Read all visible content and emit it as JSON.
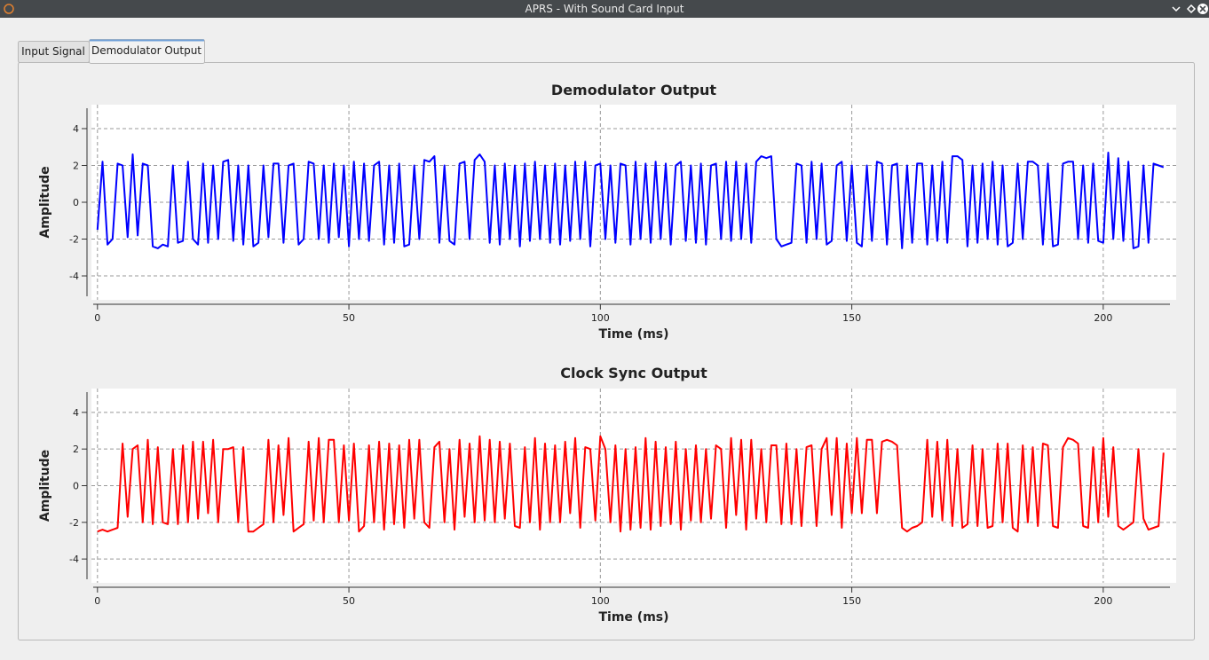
{
  "window": {
    "title": "APRS - With Sound Card Input"
  },
  "tabs": [
    "Input Signal",
    "Demodulator Output"
  ],
  "chart_data": [
    {
      "type": "line",
      "title": "Demodulator Output",
      "xlabel": "Time (ms)",
      "ylabel": "Amplitude",
      "grid": true,
      "xlim": [
        -1.2,
        214.5
      ],
      "xticks": [
        0,
        50,
        100,
        150,
        200
      ],
      "ylim": [
        -5.3,
        5.3
      ],
      "yticks": [
        -4,
        -2,
        0,
        2,
        4
      ],
      "x": [
        0,
        1,
        2,
        3,
        4,
        5,
        6,
        7,
        8,
        9,
        10,
        11,
        12,
        13,
        14,
        15,
        16,
        17,
        18,
        19,
        20,
        21,
        22,
        23,
        24,
        25,
        26,
        27,
        28,
        29,
        30,
        31,
        32,
        33,
        34,
        35,
        36,
        37,
        38,
        39,
        40,
        41,
        42,
        43,
        44,
        45,
        46,
        47,
        48,
        49,
        50,
        51,
        52,
        53,
        54,
        55,
        56,
        57,
        58,
        59,
        60,
        61,
        62,
        63,
        64,
        65,
        66,
        67,
        68,
        69,
        70,
        71,
        72,
        73,
        74,
        75,
        76,
        77,
        78,
        79,
        80,
        81,
        82,
        83,
        84,
        85,
        86,
        87,
        88,
        89,
        90,
        91,
        92,
        93,
        94,
        95,
        96,
        97,
        98,
        99,
        100,
        101,
        102,
        103,
        104,
        105,
        106,
        107,
        108,
        109,
        110,
        111,
        112,
        113,
        114,
        115,
        116,
        117,
        118,
        119,
        120,
        121,
        122,
        123,
        124,
        125,
        126,
        127,
        128,
        129,
        130,
        131,
        132,
        133,
        134,
        135,
        136,
        137,
        138,
        139,
        140,
        141,
        142,
        143,
        144,
        145,
        146,
        147,
        148,
        149,
        150,
        151,
        152,
        153,
        154,
        155,
        156,
        157,
        158,
        159,
        160,
        161,
        162,
        163,
        164,
        165,
        166,
        167,
        168,
        169,
        170,
        171,
        172,
        173,
        174,
        175,
        176,
        177,
        178,
        179,
        180,
        181,
        182,
        183,
        184,
        185,
        186,
        187,
        188,
        189,
        190,
        191,
        192,
        193,
        194,
        195,
        196,
        197,
        198,
        199,
        200,
        201,
        202,
        203,
        204,
        205,
        206,
        207,
        208,
        209,
        210,
        211,
        212
      ],
      "series": [
        {
          "color": "#0000ff",
          "values": [
            -1.5,
            2.2,
            -2.3,
            -2.0,
            2.1,
            2.0,
            -1.9,
            2.6,
            -1.8,
            2.1,
            2.0,
            -2.4,
            -2.5,
            -2.3,
            -2.4,
            2.0,
            -2.2,
            -2.1,
            2.2,
            -2.0,
            -2.3,
            2.1,
            -2.2,
            2.0,
            -2.0,
            2.2,
            2.3,
            -2.1,
            2.0,
            -2.3,
            2.0,
            -2.4,
            -2.2,
            2.0,
            -1.9,
            2.1,
            2.1,
            -2.2,
            2.0,
            2.1,
            -2.3,
            -2.0,
            2.2,
            2.1,
            -2.0,
            2.0,
            -2.2,
            2.1,
            -1.9,
            2.0,
            -2.4,
            2.2,
            -2.0,
            2.1,
            -2.1,
            2.0,
            2.2,
            -2.3,
            2.0,
            -2.2,
            2.1,
            -2.4,
            -2.3,
            2.0,
            -2.0,
            2.3,
            2.2,
            2.5,
            -2.2,
            2.0,
            -2.1,
            -2.3,
            2.1,
            2.2,
            -2.0,
            2.3,
            2.6,
            2.2,
            -2.2,
            2.0,
            -2.3,
            2.1,
            -2.0,
            2.0,
            -2.4,
            2.1,
            -2.1,
            2.2,
            -2.0,
            2.0,
            -2.2,
            2.1,
            -2.3,
            2.0,
            -2.1,
            2.2,
            -2.0,
            2.2,
            -2.4,
            2.0,
            2.1,
            -2.0,
            2.0,
            -2.2,
            2.1,
            2.0,
            -2.3,
            2.2,
            -2.0,
            2.1,
            -2.2,
            2.2,
            -2.0,
            2.1,
            -2.3,
            2.0,
            2.2,
            -2.1,
            2.0,
            -2.2,
            2.1,
            -2.3,
            2.0,
            2.1,
            -2.0,
            2.2,
            -2.1,
            2.2,
            -2.0,
            2.1,
            -2.2,
            2.2,
            2.5,
            2.4,
            2.5,
            -2.0,
            -2.4,
            -2.3,
            -2.2,
            2.1,
            2.0,
            -2.2,
            2.2,
            -2.0,
            2.1,
            -2.3,
            -2.1,
            2.0,
            2.2,
            -2.1,
            2.0,
            -2.2,
            -2.4,
            2.0,
            -2.1,
            2.2,
            2.1,
            -2.3,
            2.0,
            2.1,
            -2.5,
            2.0,
            -2.2,
            2.1,
            2.1,
            -2.3,
            2.0,
            -2.1,
            2.2,
            -2.2,
            2.5,
            2.5,
            2.3,
            -2.4,
            2.0,
            -2.2,
            2.1,
            -2.0,
            2.2,
            -2.3,
            2.0,
            -2.4,
            -2.2,
            2.1,
            -2.0,
            2.2,
            2.2,
            2.0,
            -2.3,
            2.1,
            -2.4,
            -2.3,
            2.1,
            2.2,
            2.2,
            -2.0,
            2.0,
            -2.2,
            2.1,
            -2.1,
            -2.2,
            2.7,
            -2.0,
            2.4,
            -2.1,
            2.2,
            -2.5,
            -2.4,
            2.0,
            -2.2,
            2.1,
            2.0,
            1.9
          ]
        }
      ]
    },
    {
      "type": "line",
      "title": "Clock Sync Output",
      "xlabel": "Time (ms)",
      "ylabel": "Amplitude",
      "grid": true,
      "xlim": [
        -1.2,
        214.5
      ],
      "xticks": [
        0,
        50,
        100,
        150,
        200
      ],
      "ylim": [
        -5.3,
        5.3
      ],
      "yticks": [
        -4,
        -2,
        0,
        2,
        4
      ],
      "x": [
        0,
        1,
        2,
        3,
        4,
        5,
        6,
        7,
        8,
        9,
        10,
        11,
        12,
        13,
        14,
        15,
        16,
        17,
        18,
        19,
        20,
        21,
        22,
        23,
        24,
        25,
        26,
        27,
        28,
        29,
        30,
        31,
        32,
        33,
        34,
        35,
        36,
        37,
        38,
        39,
        40,
        41,
        42,
        43,
        44,
        45,
        46,
        47,
        48,
        49,
        50,
        51,
        52,
        53,
        54,
        55,
        56,
        57,
        58,
        59,
        60,
        61,
        62,
        63,
        64,
        65,
        66,
        67,
        68,
        69,
        70,
        71,
        72,
        73,
        74,
        75,
        76,
        77,
        78,
        79,
        80,
        81,
        82,
        83,
        84,
        85,
        86,
        87,
        88,
        89,
        90,
        91,
        92,
        93,
        94,
        95,
        96,
        97,
        98,
        99,
        100,
        101,
        102,
        103,
        104,
        105,
        106,
        107,
        108,
        109,
        110,
        111,
        112,
        113,
        114,
        115,
        116,
        117,
        118,
        119,
        120,
        121,
        122,
        123,
        124,
        125,
        126,
        127,
        128,
        129,
        130,
        131,
        132,
        133,
        134,
        135,
        136,
        137,
        138,
        139,
        140,
        141,
        142,
        143,
        144,
        145,
        146,
        147,
        148,
        149,
        150,
        151,
        152,
        153,
        154,
        155,
        156,
        157,
        158,
        159,
        160,
        161,
        162,
        163,
        164,
        165,
        166,
        167,
        168,
        169,
        170,
        171,
        172,
        173,
        174,
        175,
        176,
        177,
        178,
        179,
        180,
        181,
        182,
        183,
        184,
        185,
        186,
        187,
        188,
        189,
        190,
        191,
        192,
        193,
        194,
        195,
        196,
        197,
        198,
        199,
        200,
        201,
        202,
        203,
        204,
        205,
        206,
        207,
        208,
        209,
        210,
        211,
        212
      ],
      "series": [
        {
          "color": "#ff0000",
          "values": [
            -2.5,
            -2.4,
            -2.5,
            -2.4,
            -2.3,
            2.3,
            -1.7,
            2.0,
            2.2,
            -2.0,
            2.5,
            -2.1,
            2.1,
            -2.0,
            -2.1,
            2.0,
            -2.1,
            2.2,
            -2.0,
            2.4,
            -1.8,
            2.4,
            -1.5,
            2.5,
            -2.0,
            2.0,
            2.0,
            2.1,
            -2.0,
            2.1,
            -2.5,
            -2.5,
            -2.3,
            -2.1,
            2.5,
            -2.0,
            2.2,
            -1.6,
            2.6,
            -2.5,
            -2.3,
            -2.1,
            2.4,
            -1.9,
            2.6,
            -2.0,
            2.5,
            2.5,
            -2.0,
            2.2,
            -1.9,
            2.3,
            -2.5,
            -2.2,
            2.2,
            -2.0,
            2.4,
            -2.4,
            2.3,
            -2.1,
            2.2,
            -2.3,
            2.5,
            -1.8,
            2.5,
            -2.0,
            -2.3,
            2.1,
            2.4,
            -2.0,
            2.0,
            -2.4,
            2.5,
            -1.7,
            2.3,
            -2.0,
            2.7,
            -1.9,
            2.5,
            -2.0,
            2.4,
            -1.8,
            2.3,
            -2.2,
            -2.3,
            2.1,
            -2.0,
            2.6,
            -2.4,
            2.3,
            -2.0,
            2.2,
            -2.0,
            2.4,
            -1.5,
            2.6,
            -2.3,
            2.1,
            2.0,
            -1.9,
            2.7,
            2.0,
            -2.0,
            2.2,
            -2.5,
            2.0,
            -2.4,
            2.1,
            -2.3,
            2.6,
            -2.4,
            2.4,
            -2.2,
            2.1,
            -2.1,
            2.4,
            -2.4,
            2.0,
            -1.9,
            2.2,
            -2.0,
            2.0,
            -1.8,
            2.2,
            2.0,
            -2.3,
            2.6,
            -1.6,
            2.5,
            -2.4,
            2.5,
            -1.8,
            2.0,
            -2.0,
            2.2,
            2.2,
            -2.1,
            2.3,
            -2.1,
            2.0,
            -2.2,
            2.1,
            2.2,
            -2.2,
            2.0,
            2.6,
            -1.6,
            2.6,
            -2.3,
            2.3,
            -1.5,
            2.6,
            -1.5,
            2.5,
            2.5,
            -1.5,
            2.4,
            2.5,
            2.4,
            2.2,
            -2.3,
            -2.5,
            -2.3,
            -2.2,
            -2.0,
            2.5,
            -1.7,
            2.4,
            -1.9,
            2.5,
            -2.2,
            2.0,
            -2.3,
            -2.1,
            2.2,
            -2.2,
            2.0,
            -2.3,
            -2.2,
            2.3,
            -2.0,
            2.3,
            -2.3,
            -2.5,
            2.2,
            -2.0,
            2.1,
            -2.2,
            2.3,
            2.2,
            -2.2,
            -2.3,
            2.1,
            2.6,
            2.5,
            2.3,
            -2.2,
            -2.3,
            2.1,
            -2.0,
            2.6,
            -1.7,
            2.1,
            -2.2,
            -2.4,
            -2.2,
            -2.0,
            2.0,
            -1.8,
            -2.4,
            -2.3,
            -2.2,
            1.8
          ]
        }
      ]
    }
  ]
}
